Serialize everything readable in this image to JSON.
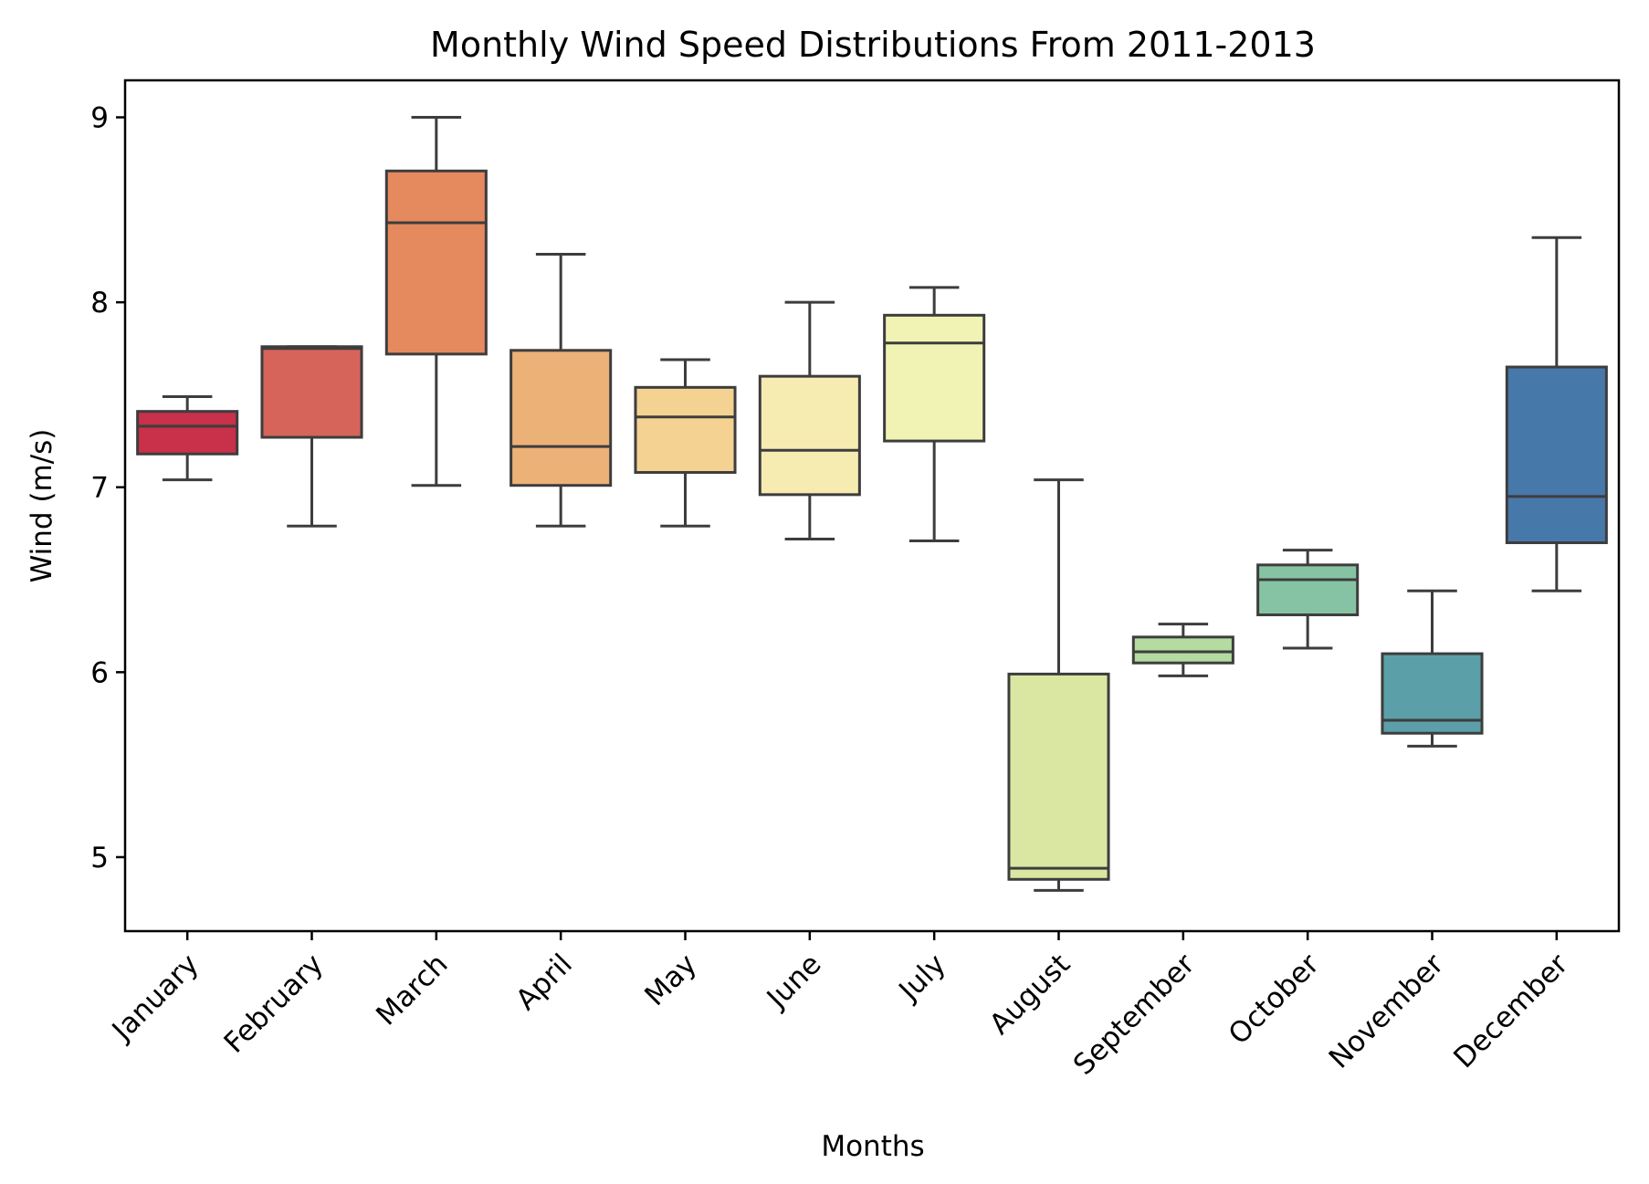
{
  "chart_data": {
    "type": "box",
    "title": "Monthly Wind Speed Distributions From 2011-2013",
    "xlabel": "Months",
    "ylabel": "Wind (m/s)",
    "ylim": [
      4.6,
      9.2
    ],
    "yticks": [
      5,
      6,
      7,
      8,
      9
    ],
    "grid": false,
    "categories": [
      "January",
      "February",
      "March",
      "April",
      "May",
      "June",
      "July",
      "August",
      "September",
      "October",
      "November",
      "December"
    ],
    "boxes": [
      {
        "category": "January",
        "min": 7.04,
        "q1": 7.18,
        "median": 7.33,
        "q3": 7.41,
        "max": 7.49,
        "color": "#c9304a"
      },
      {
        "category": "February",
        "min": 6.79,
        "q1": 7.27,
        "median": 7.75,
        "q3": 7.76,
        "max": 7.76,
        "color": "#d6645a"
      },
      {
        "category": "March",
        "min": 7.01,
        "q1": 7.72,
        "median": 8.43,
        "q3": 8.71,
        "max": 9.0,
        "color": "#e5895f"
      },
      {
        "category": "April",
        "min": 6.79,
        "q1": 7.01,
        "median": 7.22,
        "q3": 7.74,
        "max": 8.26,
        "color": "#ecb177"
      },
      {
        "category": "May",
        "min": 6.79,
        "q1": 7.08,
        "median": 7.38,
        "q3": 7.54,
        "max": 7.69,
        "color": "#f3d292"
      },
      {
        "category": "June",
        "min": 6.72,
        "q1": 6.96,
        "median": 7.2,
        "q3": 7.6,
        "max": 8.0,
        "color": "#f6ebb1"
      },
      {
        "category": "July",
        "min": 6.71,
        "q1": 7.25,
        "median": 7.78,
        "q3": 7.93,
        "max": 8.08,
        "color": "#f1f3b4"
      },
      {
        "category": "August",
        "min": 4.82,
        "q1": 4.88,
        "median": 4.94,
        "q3": 5.99,
        "max": 7.04,
        "color": "#dae7a3"
      },
      {
        "category": "September",
        "min": 5.98,
        "q1": 6.05,
        "median": 6.11,
        "q3": 6.19,
        "max": 6.26,
        "color": "#b4dba0"
      },
      {
        "category": "October",
        "min": 6.13,
        "q1": 6.31,
        "median": 6.5,
        "q3": 6.58,
        "max": 6.66,
        "color": "#86c3a4"
      },
      {
        "category": "November",
        "min": 5.6,
        "q1": 5.67,
        "median": 5.74,
        "q3": 6.1,
        "max": 6.44,
        "color": "#5ba0a8"
      },
      {
        "category": "December",
        "min": 6.44,
        "q1": 6.7,
        "median": 6.95,
        "q3": 7.65,
        "max": 8.35,
        "color": "#4778aa"
      }
    ]
  }
}
